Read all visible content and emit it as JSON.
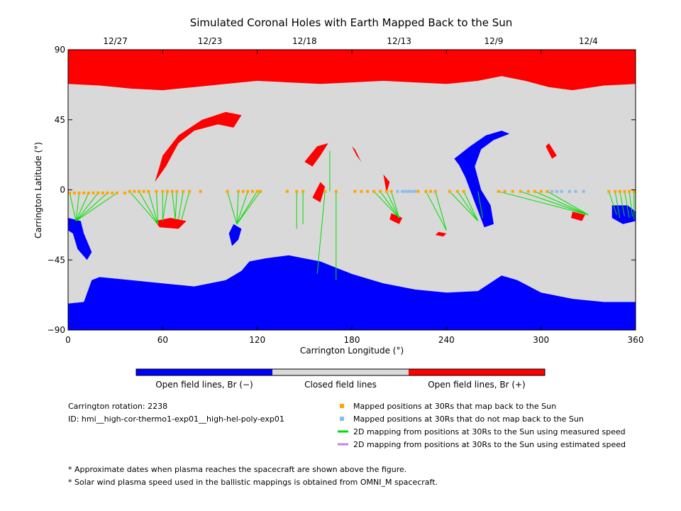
{
  "chart_data": {
    "type": "map",
    "title": "Simulated Coronal Holes with Earth Mapped Back to the Sun",
    "xlabel": "Carrington Longitude (°)",
    "ylabel": "Carrington Latitude (°)",
    "xlim": [
      0,
      360
    ],
    "ylim": [
      -90,
      90
    ],
    "xticks": [
      "0",
      "60",
      "120",
      "180",
      "240",
      "300",
      "360"
    ],
    "yticks": [
      "90",
      "45",
      "0",
      "−45",
      "−90"
    ],
    "top_dates": [
      {
        "label": "12/27",
        "lon": 30
      },
      {
        "label": "12/23",
        "lon": 90
      },
      {
        "label": "12/18",
        "lon": 150
      },
      {
        "label": "12/13",
        "lon": 210
      },
      {
        "label": "12/9",
        "lon": 270
      },
      {
        "label": "12/4",
        "lon": 330
      }
    ],
    "colors": {
      "open_negative": "#0000ff",
      "closed": "#d9d9d9",
      "open_positive": "#ff0000",
      "mapped_back": "#ffa500",
      "not_mapped": "#88bbee",
      "measured_speed": "#00dd00",
      "estimated_speed": "#bb88ee"
    },
    "colorbar_labels": [
      "Open field lines, Br (−)",
      "Closed field lines",
      "Open field lines, Br (+)"
    ],
    "regions": {
      "north_polar_boundary": [
        [
          0,
          68
        ],
        [
          20,
          67
        ],
        [
          40,
          65
        ],
        [
          60,
          64
        ],
        [
          80,
          66
        ],
        [
          100,
          68
        ],
        [
          120,
          70
        ],
        [
          140,
          69
        ],
        [
          160,
          68
        ],
        [
          180,
          69
        ],
        [
          200,
          70
        ],
        [
          220,
          69
        ],
        [
          240,
          68
        ],
        [
          250,
          69
        ],
        [
          260,
          70
        ],
        [
          275,
          73
        ],
        [
          290,
          70
        ],
        [
          305,
          66
        ],
        [
          320,
          64
        ],
        [
          340,
          67
        ],
        [
          360,
          68
        ]
      ],
      "south_polar_boundary": [
        [
          0,
          -73
        ],
        [
          10,
          -72
        ],
        [
          15,
          -58
        ],
        [
          20,
          -56
        ],
        [
          40,
          -58
        ],
        [
          60,
          -60
        ],
        [
          80,
          -62
        ],
        [
          100,
          -58
        ],
        [
          110,
          -52
        ],
        [
          115,
          -46
        ],
        [
          125,
          -44
        ],
        [
          140,
          -42
        ],
        [
          150,
          -44
        ],
        [
          160,
          -46
        ],
        [
          170,
          -50
        ],
        [
          180,
          -54
        ],
        [
          200,
          -60
        ],
        [
          220,
          -64
        ],
        [
          240,
          -66
        ],
        [
          260,
          -65
        ],
        [
          275,
          -55
        ],
        [
          285,
          -58
        ],
        [
          300,
          -66
        ],
        [
          320,
          -70
        ],
        [
          340,
          -72
        ],
        [
          360,
          -72
        ]
      ],
      "positive_holes": [
        [
          [
            60,
            22
          ],
          [
            70,
            35
          ],
          [
            85,
            45
          ],
          [
            100,
            50
          ],
          [
            110,
            48
          ],
          [
            105,
            40
          ],
          [
            95,
            42
          ],
          [
            80,
            38
          ],
          [
            70,
            30
          ],
          [
            62,
            15
          ],
          [
            55,
            5
          ],
          [
            58,
            15
          ]
        ],
        [
          [
            150,
            18
          ],
          [
            158,
            28
          ],
          [
            165,
            30
          ],
          [
            160,
            22
          ],
          [
            155,
            15
          ]
        ],
        [
          [
            155,
            -5
          ],
          [
            160,
            5
          ],
          [
            163,
            2
          ],
          [
            160,
            -8
          ]
        ],
        [
          [
            180,
            28
          ],
          [
            183,
            22
          ],
          [
            186,
            18
          ],
          [
            182,
            26
          ]
        ],
        [
          [
            200,
            10
          ],
          [
            202,
            -2
          ],
          [
            204,
            5
          ]
        ],
        [
          [
            55,
            -20
          ],
          [
            65,
            -18
          ],
          [
            75,
            -20
          ],
          [
            70,
            -25
          ],
          [
            58,
            -24
          ]
        ],
        [
          [
            205,
            -15
          ],
          [
            212,
            -18
          ],
          [
            210,
            -22
          ],
          [
            204,
            -19
          ]
        ],
        [
          [
            235,
            -27
          ],
          [
            240,
            -28
          ],
          [
            238,
            -30
          ],
          [
            233,
            -29
          ]
        ],
        [
          [
            320,
            -14
          ],
          [
            328,
            -16
          ],
          [
            326,
            -20
          ],
          [
            319,
            -18
          ]
        ],
        [
          [
            305,
            30
          ],
          [
            310,
            22
          ],
          [
            307,
            20
          ],
          [
            303,
            28
          ]
        ]
      ],
      "negative_holes": [
        [
          [
            245,
            20
          ],
          [
            255,
            28
          ],
          [
            265,
            35
          ],
          [
            275,
            38
          ],
          [
            280,
            36
          ],
          [
            270,
            32
          ],
          [
            262,
            26
          ],
          [
            258,
            15
          ],
          [
            262,
            0
          ],
          [
            268,
            -10
          ],
          [
            270,
            -22
          ],
          [
            264,
            -24
          ],
          [
            258,
            -8
          ],
          [
            252,
            8
          ],
          [
            248,
            16
          ]
        ],
        [
          [
            0,
            -18
          ],
          [
            8,
            -20
          ],
          [
            10,
            -28
          ],
          [
            15,
            -40
          ],
          [
            12,
            -45
          ],
          [
            6,
            -38
          ],
          [
            3,
            -28
          ],
          [
            0,
            -26
          ]
        ],
        [
          [
            105,
            -22
          ],
          [
            110,
            -25
          ],
          [
            108,
            -32
          ],
          [
            104,
            -36
          ],
          [
            102,
            -28
          ]
        ],
        [
          [
            345,
            -10
          ],
          [
            355,
            -10
          ],
          [
            360,
            -14
          ],
          [
            360,
            -20
          ],
          [
            352,
            -22
          ],
          [
            345,
            -18
          ]
        ]
      ]
    },
    "mapped_points": [
      {
        "lon": 1,
        "lat": -2
      },
      {
        "lon": 4,
        "lat": -2
      },
      {
        "lon": 7,
        "lat": -2
      },
      {
        "lon": 10,
        "lat": -2
      },
      {
        "lon": 13,
        "lat": -2
      },
      {
        "lon": 16,
        "lat": -2
      },
      {
        "lon": 19,
        "lat": -2
      },
      {
        "lon": 22,
        "lat": -2
      },
      {
        "lon": 25,
        "lat": -2
      },
      {
        "lon": 28,
        "lat": -2
      },
      {
        "lon": 31,
        "lat": -2
      },
      {
        "lon": 36,
        "lat": -2
      },
      {
        "lon": 39,
        "lat": -1
      },
      {
        "lon": 42,
        "lat": -1
      },
      {
        "lon": 45,
        "lat": -1
      },
      {
        "lon": 48,
        "lat": -1
      },
      {
        "lon": 51,
        "lat": -1
      },
      {
        "lon": 56,
        "lat": -1
      },
      {
        "lon": 60,
        "lat": -1
      },
      {
        "lon": 63,
        "lat": -1
      },
      {
        "lon": 66,
        "lat": -1
      },
      {
        "lon": 69,
        "lat": -1
      },
      {
        "lon": 73,
        "lat": -1
      },
      {
        "lon": 77,
        "lat": -1
      },
      {
        "lon": 84,
        "lat": -1
      },
      {
        "lon": 101,
        "lat": -1
      },
      {
        "lon": 108,
        "lat": -1
      },
      {
        "lon": 111,
        "lat": -1
      },
      {
        "lon": 114,
        "lat": -1
      },
      {
        "lon": 117,
        "lat": -1
      },
      {
        "lon": 120,
        "lat": -1
      },
      {
        "lon": 122,
        "lat": -1
      },
      {
        "lon": 139,
        "lat": -1
      },
      {
        "lon": 145,
        "lat": -1
      },
      {
        "lon": 149,
        "lat": -1
      },
      {
        "lon": 163,
        "lat": -1
      },
      {
        "lon": 170,
        "lat": -1
      },
      {
        "lon": 182,
        "lat": -1
      },
      {
        "lon": 186,
        "lat": -1
      },
      {
        "lon": 190,
        "lat": -1
      },
      {
        "lon": 194,
        "lat": -1
      },
      {
        "lon": 198,
        "lat": -1
      },
      {
        "lon": 202,
        "lat": -1
      },
      {
        "lon": 205,
        "lat": -1
      },
      {
        "lon": 222,
        "lat": -1
      },
      {
        "lon": 227,
        "lat": -1
      },
      {
        "lon": 230,
        "lat": -1
      },
      {
        "lon": 233,
        "lat": -1
      },
      {
        "lon": 242,
        "lat": -1
      },
      {
        "lon": 247,
        "lat": -1
      },
      {
        "lon": 251,
        "lat": -1
      },
      {
        "lon": 273,
        "lat": -1
      },
      {
        "lon": 277,
        "lat": -1
      },
      {
        "lon": 282,
        "lat": -1
      },
      {
        "lon": 287,
        "lat": -1
      },
      {
        "lon": 292,
        "lat": -1
      },
      {
        "lon": 296,
        "lat": -1
      },
      {
        "lon": 300,
        "lat": -1
      },
      {
        "lon": 304,
        "lat": -1
      },
      {
        "lon": 343,
        "lat": -1
      },
      {
        "lon": 347,
        "lat": -1
      },
      {
        "lon": 350,
        "lat": -1
      },
      {
        "lon": 353,
        "lat": -1
      },
      {
        "lon": 356,
        "lat": -1
      },
      {
        "lon": 359,
        "lat": -1
      }
    ],
    "unmapped_points": [
      {
        "lon": 209,
        "lat": -1
      },
      {
        "lon": 212,
        "lat": -1
      },
      {
        "lon": 214,
        "lat": -1
      },
      {
        "lon": 216,
        "lat": -1
      },
      {
        "lon": 218,
        "lat": -1
      },
      {
        "lon": 220,
        "lat": -1
      },
      {
        "lon": 307,
        "lat": -1
      },
      {
        "lon": 310,
        "lat": -1
      },
      {
        "lon": 313,
        "lat": -1
      },
      {
        "lon": 318,
        "lat": -1
      },
      {
        "lon": 322,
        "lat": -1
      },
      {
        "lon": 327,
        "lat": -1
      }
    ],
    "measured_mappings": [
      {
        "from": [
          1,
          -2
        ],
        "to": [
          5,
          -20
        ]
      },
      {
        "from": [
          7,
          -2
        ],
        "to": [
          5,
          -20
        ]
      },
      {
        "from": [
          13,
          -2
        ],
        "to": [
          5,
          -20
        ]
      },
      {
        "from": [
          19,
          -2
        ],
        "to": [
          5,
          -20
        ]
      },
      {
        "from": [
          25,
          -2
        ],
        "to": [
          5,
          -20
        ]
      },
      {
        "from": [
          31,
          -2
        ],
        "to": [
          5,
          -20
        ]
      },
      {
        "from": [
          39,
          -1
        ],
        "to": [
          57,
          -22
        ]
      },
      {
        "from": [
          45,
          -1
        ],
        "to": [
          57,
          -22
        ]
      },
      {
        "from": [
          51,
          -1
        ],
        "to": [
          57,
          -22
        ]
      },
      {
        "from": [
          56,
          -1
        ],
        "to": [
          57,
          -22
        ]
      },
      {
        "from": [
          60,
          -1
        ],
        "to": [
          60,
          -20
        ]
      },
      {
        "from": [
          63,
          -1
        ],
        "to": [
          60,
          -20
        ]
      },
      {
        "from": [
          66,
          -1
        ],
        "to": [
          68,
          -19
        ]
      },
      {
        "from": [
          69,
          -1
        ],
        "to": [
          68,
          -19
        ]
      },
      {
        "from": [
          73,
          -1
        ],
        "to": [
          70,
          -19
        ]
      },
      {
        "from": [
          77,
          -1
        ],
        "to": [
          72,
          -19
        ]
      },
      {
        "from": [
          101,
          -1
        ],
        "to": [
          107,
          -22
        ]
      },
      {
        "from": [
          108,
          -1
        ],
        "to": [
          107,
          -22
        ]
      },
      {
        "from": [
          114,
          -1
        ],
        "to": [
          107,
          -22
        ]
      },
      {
        "from": [
          120,
          -1
        ],
        "to": [
          107,
          -22
        ]
      },
      {
        "from": [
          122,
          -1
        ],
        "to": [
          107,
          -22
        ]
      },
      {
        "from": [
          145,
          -1
        ],
        "to": [
          145,
          -25
        ]
      },
      {
        "from": [
          149,
          -1
        ],
        "to": [
          149,
          -22
        ]
      },
      {
        "from": [
          163,
          -1
        ],
        "to": [
          158,
          -54
        ]
      },
      {
        "from": [
          170,
          -1
        ],
        "to": [
          170,
          -58
        ]
      },
      {
        "from": [
          166,
          25
        ],
        "to": [
          166,
          -1
        ]
      },
      {
        "from": [
          194,
          -1
        ],
        "to": [
          210,
          -18
        ]
      },
      {
        "from": [
          198,
          -1
        ],
        "to": [
          210,
          -18
        ]
      },
      {
        "from": [
          202,
          -1
        ],
        "to": [
          210,
          -18
        ]
      },
      {
        "from": [
          205,
          -1
        ],
        "to": [
          210,
          -18
        ]
      },
      {
        "from": [
          227,
          -1
        ],
        "to": [
          240,
          -26
        ]
      },
      {
        "from": [
          233,
          -1
        ],
        "to": [
          240,
          -26
        ]
      },
      {
        "from": [
          242,
          -1
        ],
        "to": [
          260,
          -20
        ]
      },
      {
        "from": [
          247,
          -1
        ],
        "to": [
          260,
          -20
        ]
      },
      {
        "from": [
          251,
          -1
        ],
        "to": [
          260,
          -20
        ]
      },
      {
        "from": [
          260,
          -1
        ],
        "to": [
          263,
          -18
        ]
      },
      {
        "from": [
          273,
          -1
        ],
        "to": [
          330,
          -16
        ]
      },
      {
        "from": [
          287,
          -1
        ],
        "to": [
          330,
          -16
        ]
      },
      {
        "from": [
          296,
          -1
        ],
        "to": [
          330,
          -16
        ]
      },
      {
        "from": [
          304,
          -1
        ],
        "to": [
          330,
          -16
        ]
      },
      {
        "from": [
          343,
          -1
        ],
        "to": [
          348,
          -16
        ]
      },
      {
        "from": [
          347,
          -1
        ],
        "to": [
          350,
          -18
        ]
      },
      {
        "from": [
          350,
          -1
        ],
        "to": [
          353,
          -17
        ]
      },
      {
        "from": [
          353,
          -1
        ],
        "to": [
          356,
          -18
        ]
      },
      {
        "from": [
          356,
          -1
        ],
        "to": [
          358,
          -17
        ]
      },
      {
        "from": [
          359,
          -1
        ],
        "to": [
          359,
          -19
        ]
      }
    ]
  },
  "legend": {
    "rotation": "Carrington rotation: 2238",
    "id": "ID: hmi__high-cor-thermo1-exp01__high-hel-poly-exp01",
    "items": [
      {
        "label": "Mapped positions at 30Rs that map back to the Sun",
        "kind": "square",
        "color": "#ffa500"
      },
      {
        "label": "Mapped positions at 30Rs that do not map back to the Sun",
        "kind": "square",
        "color": "#88bbee"
      },
      {
        "label": "2D mapping from positions at 30Rs to the Sun using measured speed",
        "kind": "line",
        "color": "#00dd00"
      },
      {
        "label": "2D mapping from positions at 30Rs to the Sun using estimated speed",
        "kind": "line",
        "color": "#bb88ee"
      }
    ]
  },
  "notes": [
    "* Approximate dates when plasma reaches the spacecraft are shown above the figure.",
    "* Solar wind plasma speed used in the ballistic mappings is obtained from OMNI_M spacecraft."
  ]
}
